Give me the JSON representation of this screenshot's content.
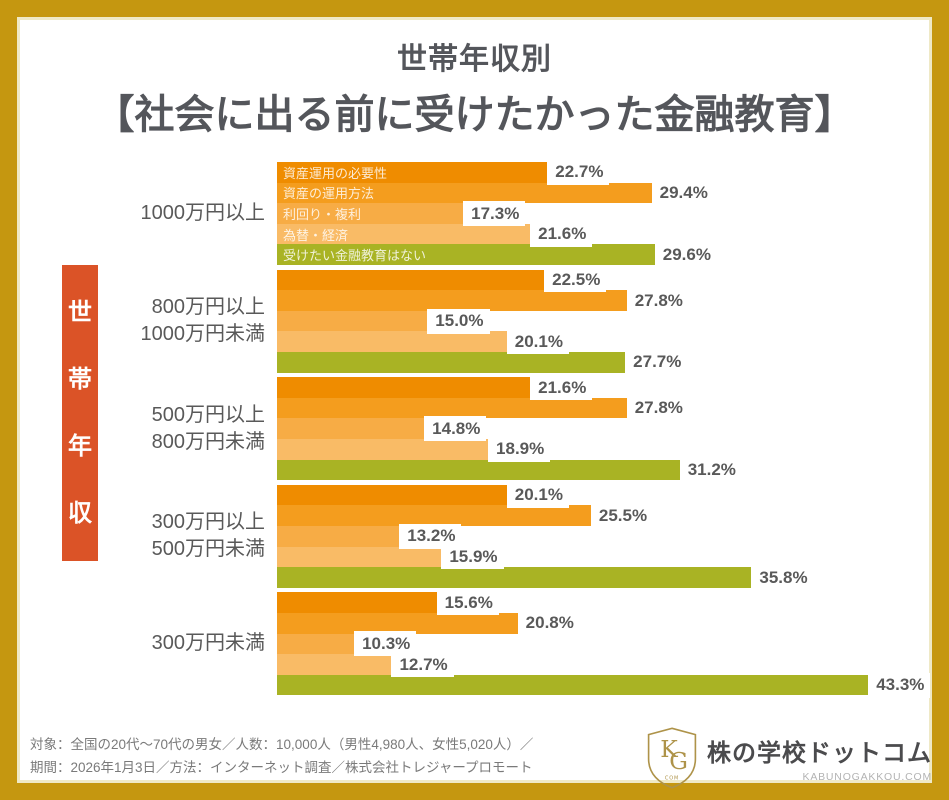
{
  "header": {
    "subtitle": "世帯年収別",
    "title": "【社会に出る前に受けたかった金融教育】"
  },
  "axis_label": {
    "text": "世帯年収",
    "chars": [
      "世",
      "帯",
      "年",
      "収"
    ],
    "bg_color": "#DB5327"
  },
  "chart_data": {
    "type": "bar",
    "orientation": "horizontal",
    "unit": "%",
    "value_label_format": "{value}%",
    "categories": [
      "1000万円以上",
      "800万円以上1000万円未満",
      "500万円以上800万円未満",
      "300万円以上500万円未満",
      "300万円未満"
    ],
    "categories_lines": [
      [
        "1000万円以上"
      ],
      [
        "800万円以上",
        "1000万円未満"
      ],
      [
        "500万円以上",
        "800万円未満"
      ],
      [
        "300万円以上",
        "500万円未満"
      ],
      [
        "300万円未満"
      ]
    ],
    "series": [
      {
        "name": "資産運用の必要性",
        "color": "#EF8C00",
        "values": [
          22.7,
          22.5,
          21.6,
          20.1,
          15.6
        ]
      },
      {
        "name": "資産の運用方法",
        "color": "#F49D1E",
        "values": [
          29.4,
          27.8,
          27.8,
          25.5,
          20.8
        ]
      },
      {
        "name": "利回り・複利",
        "color": "#F7AC45",
        "values": [
          17.3,
          15.0,
          14.8,
          13.2,
          10.3
        ]
      },
      {
        "name": "為替・経済",
        "color": "#F9BB66",
        "values": [
          21.6,
          20.1,
          18.9,
          15.9,
          12.7
        ]
      },
      {
        "name": "受けたい金融教育はない",
        "color": "#A9B324",
        "values": [
          29.6,
          27.7,
          31.2,
          35.8,
          43.3
        ]
      }
    ],
    "series_labels_shown_on_group_index": 0,
    "legend_position": "in-bar",
    "grid": false
  },
  "footer": {
    "line1": "対象：全国の20代〜70代の男女／人数：10,000人（男性4,980人、女性5,020人）／",
    "line2": "期間：2026年1月3日／方法：インターネット調査／株式会社トレジャープロモート",
    "logo": {
      "shield_initials": "KG",
      "shield_sub": "COM",
      "name": "株の学校ドットコム",
      "domain": "KABUNOGAKKOU.COM"
    }
  },
  "colors": {
    "frame_gold": "#C59710",
    "frame_inner_stripe": "#EFE9C6",
    "title_text": "#54565B",
    "value_text": "#595959",
    "category_text": "#595959",
    "footer_text": "#7A7A7A",
    "axis_box_red": "#DB5327"
  }
}
